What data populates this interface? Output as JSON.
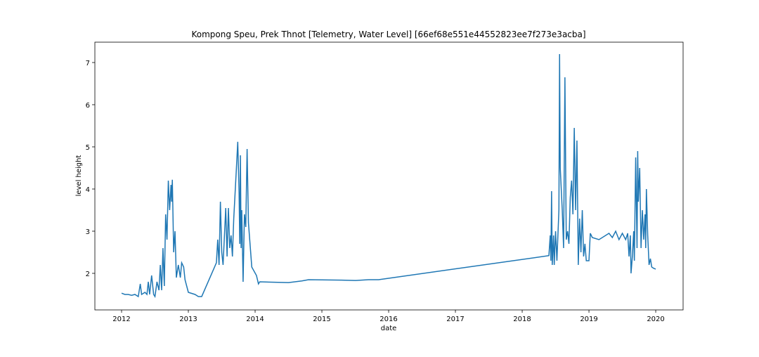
{
  "chart_data": {
    "type": "line",
    "title": "Kompong Speu, Prek Thnot [Telemetry, Water Level] [66ef68e551e44552823ee7f273e3acba]",
    "x_label": "date",
    "y_label": "level height",
    "xlim": [
      2011.6,
      2020.41
    ],
    "xticks": [
      2012,
      2013,
      2014,
      2015,
      2016,
      2017,
      2018,
      2019,
      2020
    ],
    "ylim": [
      1.133,
      7.483
    ],
    "yticks": [
      2,
      3,
      4,
      5,
      6,
      7
    ],
    "grid": false,
    "x": [
      2012.0,
      2012.05,
      2012.1,
      2012.15,
      2012.2,
      2012.25,
      2012.28,
      2012.3,
      2012.35,
      2012.38,
      2012.4,
      2012.42,
      2012.45,
      2012.48,
      2012.5,
      2012.53,
      2012.56,
      2012.58,
      2012.6,
      2012.62,
      2012.64,
      2012.66,
      2012.68,
      2012.7,
      2012.72,
      2012.74,
      2012.75,
      2012.76,
      2012.78,
      2012.8,
      2012.82,
      2012.85,
      2012.88,
      2012.9,
      2012.93,
      2012.95,
      2013.0,
      2013.1,
      2013.15,
      2013.2,
      2013.42,
      2013.44,
      2013.46,
      2013.48,
      2013.5,
      2013.52,
      2013.56,
      2013.58,
      2013.6,
      2013.62,
      2013.64,
      2013.66,
      2013.68,
      2013.7,
      2013.72,
      2013.74,
      2013.76,
      2013.77,
      2013.78,
      2013.79,
      2013.8,
      2013.82,
      2013.84,
      2013.86,
      2013.88,
      2013.9,
      2013.95,
      2014.02,
      2014.05,
      2014.07,
      2014.5,
      2014.7,
      2014.8,
      2015.3,
      2015.5,
      2015.7,
      2015.85,
      2018.4,
      2018.42,
      2018.43,
      2018.44,
      2018.45,
      2018.47,
      2018.48,
      2018.5,
      2018.52,
      2018.55,
      2018.56,
      2018.57,
      2018.6,
      2018.62,
      2018.64,
      2018.66,
      2018.68,
      2018.7,
      2018.72,
      2018.74,
      2018.76,
      2018.78,
      2018.8,
      2018.82,
      2018.84,
      2018.86,
      2018.88,
      2018.9,
      2018.92,
      2018.94,
      2018.96,
      2019.0,
      2019.02,
      2019.05,
      2019.15,
      2019.25,
      2019.3,
      2019.35,
      2019.4,
      2019.45,
      2019.5,
      2019.55,
      2019.58,
      2019.6,
      2019.62,
      2019.63,
      2019.65,
      2019.67,
      2019.68,
      2019.7,
      2019.72,
      2019.73,
      2019.74,
      2019.76,
      2019.78,
      2019.8,
      2019.82,
      2019.84,
      2019.85,
      2019.86,
      2019.88,
      2019.9,
      2019.92,
      2019.94,
      2019.97,
      2020.0
    ],
    "series": [
      {
        "color": "#1f77b4",
        "values": [
          1.53,
          1.5,
          1.5,
          1.48,
          1.5,
          1.45,
          1.75,
          1.5,
          1.55,
          1.5,
          1.8,
          1.5,
          1.95,
          1.5,
          1.45,
          1.8,
          1.6,
          2.2,
          1.6,
          2.6,
          1.7,
          3.4,
          2.8,
          4.2,
          3.5,
          4.1,
          3.7,
          4.22,
          2.5,
          3.0,
          1.9,
          2.2,
          1.9,
          2.25,
          2.15,
          1.85,
          1.55,
          1.5,
          1.45,
          1.45,
          2.25,
          2.8,
          2.2,
          3.7,
          2.5,
          2.2,
          3.55,
          2.4,
          3.55,
          2.6,
          2.9,
          2.4,
          3.3,
          3.9,
          4.5,
          5.12,
          3.9,
          2.7,
          4.8,
          2.6,
          3.5,
          1.8,
          3.4,
          3.1,
          4.95,
          3.2,
          2.15,
          1.95,
          1.75,
          1.8,
          1.78,
          1.82,
          1.85,
          1.84,
          1.83,
          1.85,
          1.85,
          2.42,
          2.9,
          2.3,
          3.95,
          2.2,
          2.9,
          2.2,
          3.0,
          2.3,
          3.5,
          7.2,
          4.5,
          3.5,
          2.6,
          6.65,
          2.8,
          3.0,
          2.7,
          3.8,
          4.2,
          3.4,
          5.45,
          3.5,
          5.15,
          2.2,
          3.3,
          2.5,
          3.5,
          2.4,
          2.7,
          2.3,
          2.3,
          2.95,
          2.85,
          2.8,
          2.9,
          2.95,
          2.85,
          3.0,
          2.8,
          2.95,
          2.8,
          2.95,
          2.4,
          2.9,
          2.0,
          2.4,
          3.0,
          2.3,
          4.75,
          2.6,
          4.9,
          3.7,
          4.5,
          2.6,
          3.5,
          2.8,
          3.4,
          2.6,
          4.0,
          2.9,
          2.2,
          2.35,
          2.15,
          2.12,
          2.1
        ]
      }
    ]
  }
}
